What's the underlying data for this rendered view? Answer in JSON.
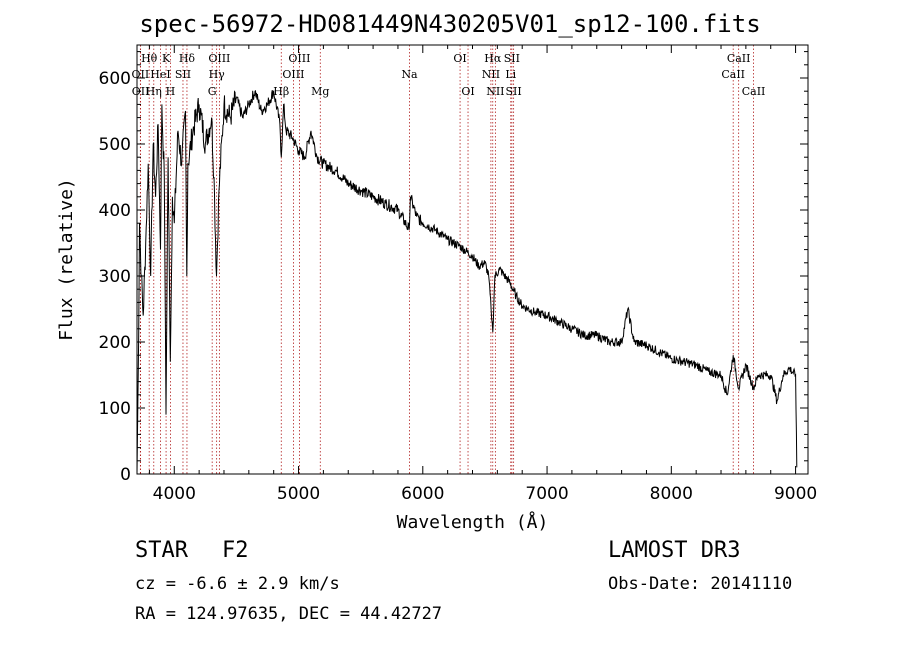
{
  "header": {
    "title": "spec-56972-HD081449N430205V01_sp12-100.fits"
  },
  "info": {
    "object_class": "STAR",
    "subclass": "F2",
    "survey": "LAMOST DR3",
    "cz": "cz = -6.6 ± 2.9 km/s",
    "obs_date": "Obs-Date: 20141110",
    "radec": "RA = 124.97635, DEC =  44.42727"
  },
  "colors": {
    "spectrum": "#000000",
    "line_marker": "#b22222",
    "axes": "#000000"
  },
  "chart_data": {
    "type": "line",
    "title": "spec-56972-HD081449N430205V01_sp12-100.fits",
    "xlabel": "Wavelength (Å)",
    "ylabel": "Flux (relative)",
    "xlim": [
      3700,
      9100
    ],
    "ylim": [
      0,
      650
    ],
    "x_ticks": [
      4000,
      5000,
      6000,
      7000,
      8000,
      9000
    ],
    "y_ticks": [
      0,
      100,
      200,
      300,
      400,
      500,
      600
    ],
    "grid": false,
    "series": [
      {
        "name": "Flux",
        "x": [
          3700,
          3710,
          3720,
          3735,
          3750,
          3770,
          3790,
          3810,
          3830,
          3850,
          3870,
          3889,
          3900,
          3920,
          3933,
          3950,
          3968,
          3985,
          4000,
          4030,
          4060,
          4090,
          4101,
          4110,
          4150,
          4200,
          4250,
          4300,
          4320,
          4340,
          4360,
          4400,
          4450,
          4500,
          4550,
          4600,
          4650,
          4700,
          4750,
          4800,
          4850,
          4861,
          4880,
          4900,
          4950,
          5000,
          5050,
          5100,
          5150,
          5200,
          5300,
          5400,
          5500,
          5600,
          5700,
          5800,
          5890,
          5900,
          5950,
          6000,
          6100,
          6200,
          6300,
          6400,
          6450,
          6500,
          6530,
          6550,
          6563,
          6580,
          6620,
          6700,
          6750,
          6800,
          6900,
          7000,
          7100,
          7200,
          7300,
          7400,
          7500,
          7600,
          7650,
          7700,
          7800,
          7900,
          8000,
          8100,
          8200,
          8300,
          8400,
          8450,
          8498,
          8542,
          8600,
          8662,
          8700,
          8800,
          8850,
          8900,
          8950,
          9000,
          9010
        ],
        "y": [
          0,
          150,
          380,
          300,
          240,
          350,
          470,
          300,
          500,
          420,
          530,
          340,
          560,
          450,
          90,
          480,
          170,
          420,
          380,
          520,
          470,
          550,
          300,
          470,
          520,
          560,
          500,
          540,
          450,
          300,
          430,
          560,
          540,
          570,
          540,
          560,
          580,
          550,
          560,
          580,
          530,
          480,
          560,
          520,
          510,
          490,
          480,
          520,
          480,
          470,
          460,
          440,
          430,
          420,
          410,
          400,
          370,
          420,
          390,
          380,
          370,
          355,
          345,
          330,
          315,
          320,
          300,
          250,
          215,
          300,
          310,
          290,
          270,
          255,
          245,
          240,
          230,
          220,
          210,
          210,
          200,
          200,
          250,
          200,
          195,
          185,
          175,
          170,
          165,
          155,
          150,
          120,
          180,
          130,
          165,
          130,
          150,
          150,
          110,
          150,
          160,
          150,
          10
        ]
      }
    ],
    "line_markers": [
      {
        "label": "Hθ",
        "x": 3798,
        "row": 1
      },
      {
        "label": "OII",
        "x": 3727,
        "row": 2
      },
      {
        "label": "OII",
        "x": 3729,
        "row": 3
      },
      {
        "label": "Hη",
        "x": 3835,
        "row": 3
      },
      {
        "label": "HeI",
        "x": 3889,
        "row": 2
      },
      {
        "label": "K",
        "x": 3934,
        "row": 1
      },
      {
        "label": "SII",
        "x": 4070,
        "row": 2
      },
      {
        "label": "H",
        "x": 3969,
        "row": 3
      },
      {
        "label": "Hδ",
        "x": 4102,
        "row": 1
      },
      {
        "label": "OIII",
        "x": 4363,
        "row": 1
      },
      {
        "label": "Hγ",
        "x": 4341,
        "row": 2
      },
      {
        "label": "G",
        "x": 4305,
        "row": 3
      },
      {
        "label": "OIII",
        "x": 5007,
        "row": 1
      },
      {
        "label": "OIII",
        "x": 4959,
        "row": 2
      },
      {
        "label": "Hβ",
        "x": 4861,
        "row": 3
      },
      {
        "label": "Mg",
        "x": 5175,
        "row": 3
      },
      {
        "label": "Na",
        "x": 5893,
        "row": 2
      },
      {
        "label": "OI",
        "x": 6300,
        "row": 1
      },
      {
        "label": "OI",
        "x": 6364,
        "row": 3
      },
      {
        "label": "Hα",
        "x": 6563,
        "row": 1
      },
      {
        "label": "NII",
        "x": 6548,
        "row": 2
      },
      {
        "label": "NII",
        "x": 6584,
        "row": 3
      },
      {
        "label": "SII",
        "x": 6717,
        "row": 1
      },
      {
        "label": "Li",
        "x": 6708,
        "row": 2
      },
      {
        "label": "SII",
        "x": 6731,
        "row": 3
      },
      {
        "label": "CaII",
        "x": 8542,
        "row": 1
      },
      {
        "label": "CaII",
        "x": 8498,
        "row": 2
      },
      {
        "label": "CaII",
        "x": 8662,
        "row": 3
      }
    ]
  }
}
